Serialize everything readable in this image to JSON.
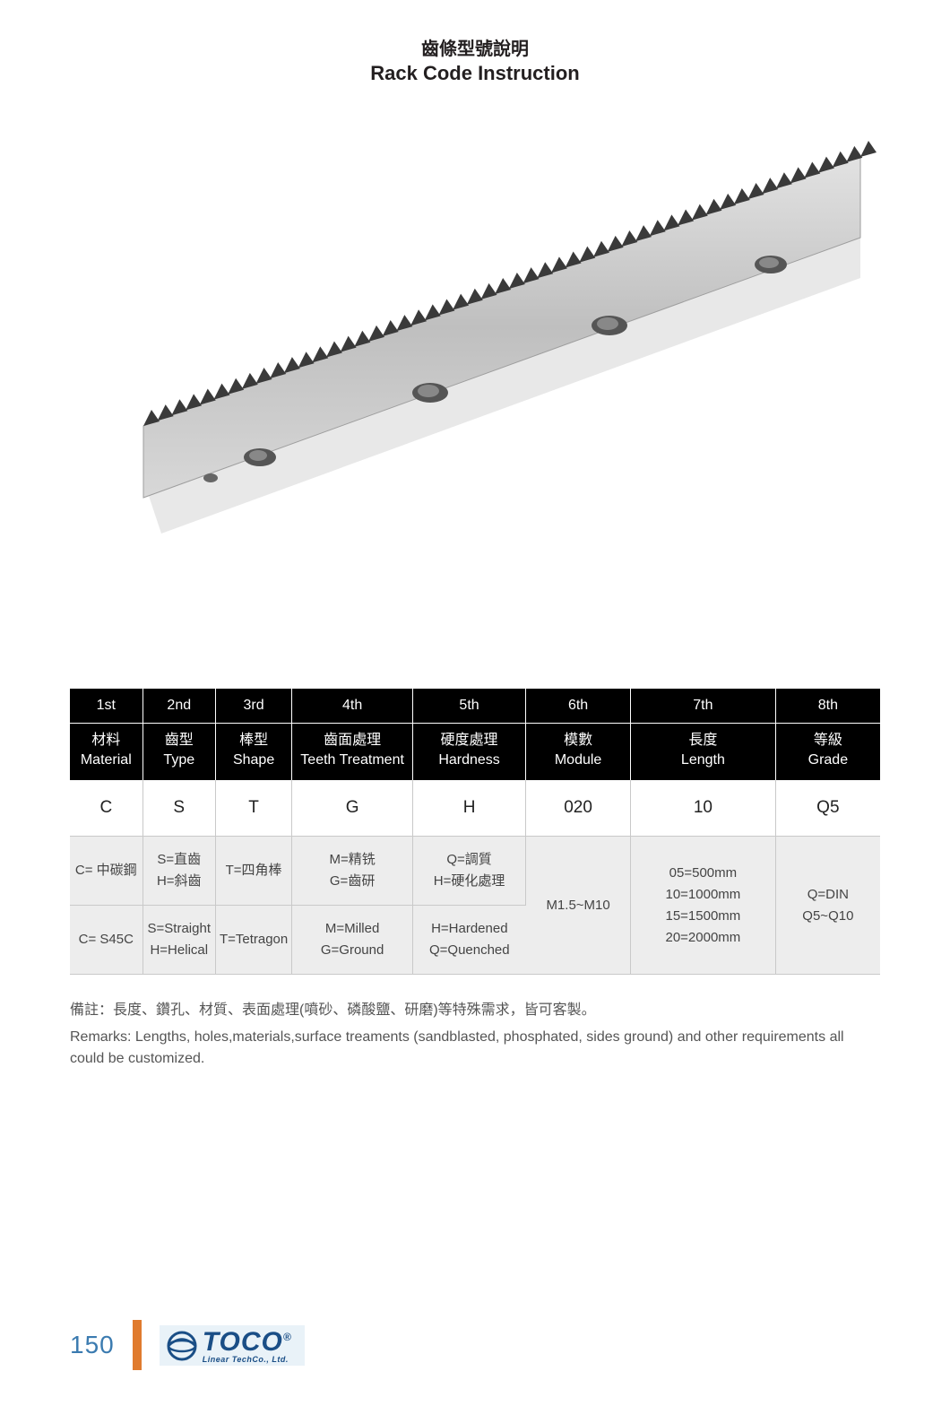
{
  "title": {
    "cn": "齒條型號說明",
    "en": "Rack Code Instruction"
  },
  "product_image": {
    "description": "metal-gear-rack",
    "body_color": "#c8c8c8",
    "shadow_color": "#e6e6e6",
    "hole_color": "#6b6b6b"
  },
  "table": {
    "header_bg": "#000000",
    "header_fg": "#ffffff",
    "row_alt_bg": "#ededed",
    "border_color": "#c9c9c9",
    "columns": [
      {
        "ordinal": "1st",
        "label_cn": "材料",
        "label_en": "Material"
      },
      {
        "ordinal": "2nd",
        "label_cn": "齒型",
        "label_en": "Type"
      },
      {
        "ordinal": "3rd",
        "label_cn": "棒型",
        "label_en": "Shape"
      },
      {
        "ordinal": "4th",
        "label_cn": "齒面處理",
        "label_en": "Teeth Treatment"
      },
      {
        "ordinal": "5th",
        "label_cn": "硬度處理",
        "label_en": "Hardness"
      },
      {
        "ordinal": "6th",
        "label_cn": "模數",
        "label_en": "Module"
      },
      {
        "ordinal": "7th",
        "label_cn": "長度",
        "label_en": "Length"
      },
      {
        "ordinal": "8th",
        "label_cn": "等級",
        "label_en": "Grade"
      }
    ],
    "example_row": [
      "C",
      "S",
      "T",
      "G",
      "H",
      "020",
      "10",
      "Q5"
    ],
    "desc_cn_row": [
      "C= 中碳鋼",
      "S=直齒\nH=斜齒",
      "T=四角棒",
      "M=精铣\nG=齒研",
      "Q=調質\nH=硬化處理",
      "",
      "",
      ""
    ],
    "desc_en_row": [
      "C= S45C",
      "S=Straight\nH=Helical",
      "T=Tetragon",
      "M=Milled\nG=Ground",
      "H=Hardened\nQ=Quenched",
      "",
      "",
      ""
    ],
    "merged_col6": "M1.5~M10",
    "merged_col7": "05=500mm\n10=1000mm\n15=1500mm\n20=2000mm",
    "merged_col8": "Q=DIN\nQ5~Q10"
  },
  "remarks": {
    "cn": "備註：長度、鑽孔、材質、表面處理(噴砂、磷酸鹽、研磨)等特殊需求，皆可客製。",
    "en": "Remarks: Lengths, holes,materials,surface treaments (sandblasted, phosphated, sides ground) and other requirements all could be customized."
  },
  "footer": {
    "page_number": "150",
    "page_color": "#3b7bb0",
    "accent_color": "#e07b2e",
    "logo_main": "TOCO",
    "logo_sub": "Linear TechCo., Ltd.",
    "logo_color": "#1a4e86",
    "logo_bg": "#e9f2f8"
  }
}
